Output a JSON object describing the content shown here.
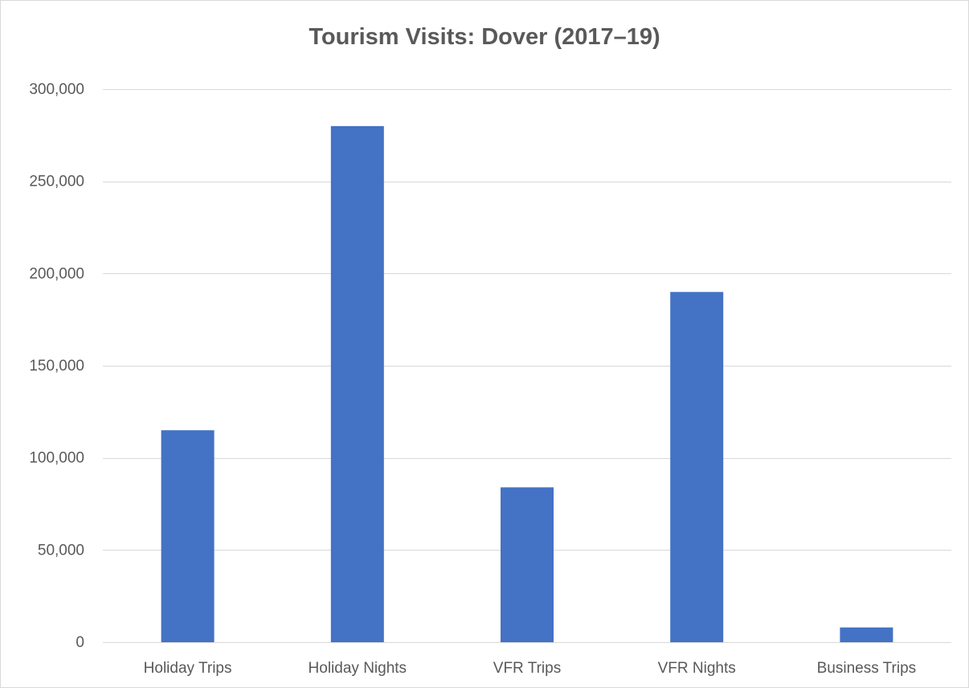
{
  "chart_data": {
    "type": "bar",
    "title": "Tourism Visits: Dover (2017–19)",
    "xlabel": "",
    "ylabel": "",
    "categories": [
      "Holiday Trips",
      "Holiday Nights",
      "VFR Trips",
      "VFR Nights",
      "Business Trips"
    ],
    "values": [
      115000,
      280000,
      84000,
      190000,
      8000
    ],
    "ylim": [
      0,
      300000
    ],
    "yticks": [
      0,
      50000,
      100000,
      150000,
      200000,
      250000,
      300000
    ],
    "ytick_labels": [
      "0",
      "50,000",
      "100,000",
      "150,000",
      "200,000",
      "250,000",
      "300,000"
    ],
    "grid": true,
    "legend": "none",
    "bar_color": "#4472c4",
    "grid_color": "#d9d9d9",
    "text_color": "#595959"
  }
}
